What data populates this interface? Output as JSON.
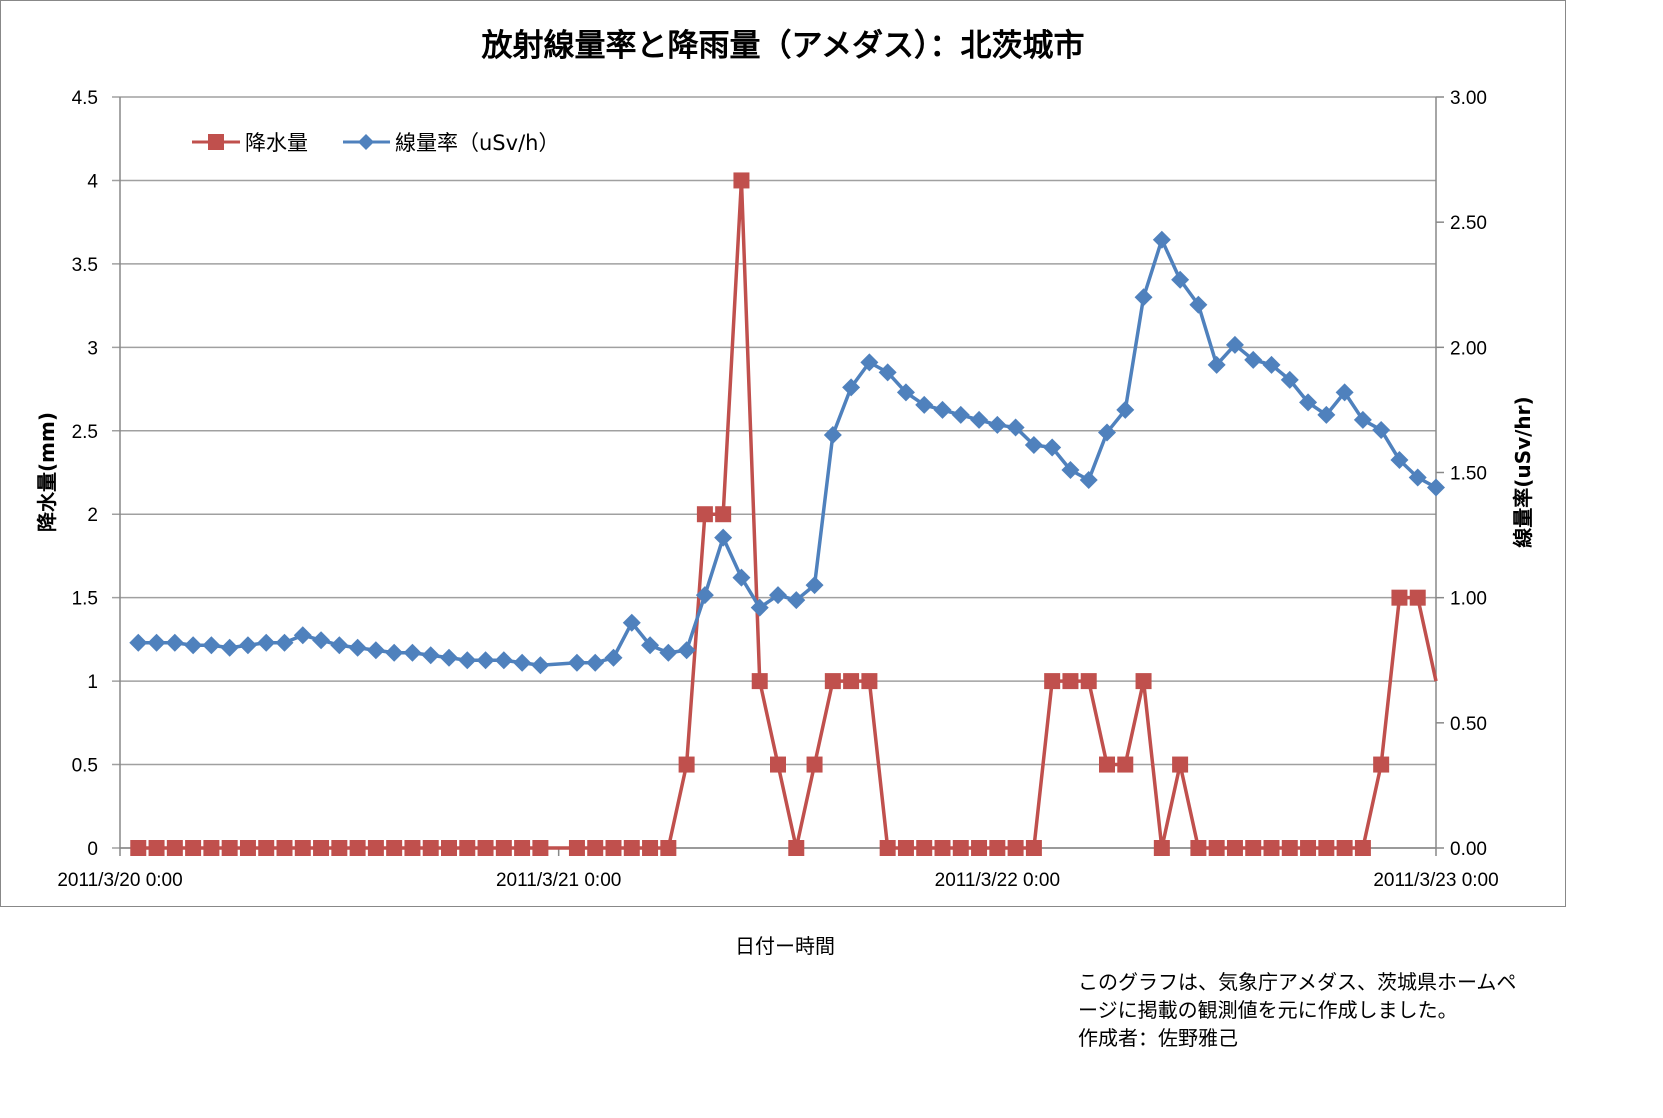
{
  "chart_data": {
    "type": "line",
    "title": "放射線量率と降雨量（アメダス）：北茨城市",
    "xlabel": "日付ー時間",
    "ylabel_left": "降水量(mm)",
    "ylabel_right": "線量率(uSv/hr)",
    "x_ticks": [
      "2011/3/20 0:00",
      "2011/3/21 0:00",
      "2011/3/22 0:00",
      "2011/3/23 0:00"
    ],
    "x_range": [
      "2011/3/20 0:00",
      "2011/3/23 0:00"
    ],
    "y_left": {
      "range": [
        0,
        4.5
      ],
      "ticks": [
        "0",
        "0.5",
        "1",
        "1.5",
        "2",
        "2.5",
        "3",
        "3.5",
        "4",
        "4.5"
      ]
    },
    "y_right": {
      "range": [
        0,
        3.0
      ],
      "ticks": [
        "0.00",
        "0.50",
        "1.00",
        "1.50",
        "2.00",
        "2.50",
        "3.00"
      ]
    },
    "grid": true,
    "legend_position": "top-left",
    "x_hours_since_3_20_0000": null,
    "series": [
      {
        "name": "降水量",
        "axis": "left",
        "color": "#C0504D",
        "marker": "square",
        "x": [
          "3/20 1:00",
          "3/20 2:00",
          "3/20 3:00",
          "3/20 4:00",
          "3/20 5:00",
          "3/20 6:00",
          "3/20 7:00",
          "3/20 8:00",
          "3/20 9:00",
          "3/20 10:00",
          "3/20 11:00",
          "3/20 12:00",
          "3/20 13:00",
          "3/20 14:00",
          "3/20 15:00",
          "3/20 16:00",
          "3/20 17:00",
          "3/20 18:00",
          "3/20 19:00",
          "3/20 20:00",
          "3/20 21:00",
          "3/20 22:00",
          "3/20 23:00",
          "3/21 0:00",
          "3/21 1:00",
          "3/21 2:00",
          "3/21 3:00",
          "3/21 4:00",
          "3/21 5:00",
          "3/21 6:00",
          "3/21 7:00",
          "3/21 8:00",
          "3/21 9:00",
          "3/21 10:00",
          "3/21 11:00",
          "3/21 12:00",
          "3/21 13:00",
          "3/21 14:00",
          "3/21 15:00",
          "3/21 16:00",
          "3/21 17:00",
          "3/21 18:00",
          "3/21 19:00",
          "3/21 20:00",
          "3/21 21:00",
          "3/21 22:00",
          "3/21 23:00",
          "3/22 0:00",
          "3/22 1:00",
          "3/22 2:00",
          "3/22 3:00",
          "3/22 4:00",
          "3/22 5:00",
          "3/22 6:00",
          "3/22 7:00",
          "3/22 8:00",
          "3/22 9:00",
          "3/22 10:00",
          "3/22 11:00",
          "3/22 12:00",
          "3/22 13:00",
          "3/22 14:00",
          "3/22 15:00",
          "3/22 16:00",
          "3/22 17:00",
          "3/22 18:00",
          "3/22 19:00",
          "3/22 20:00",
          "3/22 21:00",
          "3/22 22:00",
          "3/22 23:00",
          "3/23 0:00"
        ],
        "values": [
          0,
          0,
          0,
          0,
          0,
          0,
          0,
          0,
          0,
          0,
          0,
          0,
          0,
          0,
          0,
          0,
          0,
          0,
          0,
          0,
          0,
          0,
          0,
          null,
          0,
          0,
          0,
          0,
          0,
          0,
          0.5,
          2,
          2,
          4,
          1,
          0.5,
          0,
          0.5,
          1,
          1,
          1,
          0,
          0,
          0,
          0,
          0,
          0,
          0,
          0,
          0,
          1,
          1,
          1,
          0.5,
          0.5,
          1,
          0,
          0.5,
          0,
          0,
          0,
          0,
          0,
          0,
          0,
          0,
          0,
          0,
          0.5,
          1.5,
          1.5,
          1
        ]
      },
      {
        "name": "線量率（uSv/h）",
        "axis": "right",
        "color": "#4F81BD",
        "marker": "diamond",
        "values": [
          0.82,
          0.82,
          0.82,
          0.81,
          0.81,
          0.8,
          0.81,
          0.82,
          0.82,
          0.85,
          0.83,
          0.81,
          0.8,
          0.79,
          0.78,
          0.78,
          0.77,
          0.76,
          0.75,
          0.75,
          0.75,
          0.74,
          0.73,
          null,
          0.74,
          0.74,
          0.76,
          0.9,
          0.81,
          0.78,
          0.79,
          1.01,
          1.24,
          1.08,
          0.96,
          1.01,
          0.99,
          1.05,
          1.65,
          1.84,
          1.94,
          1.9,
          1.82,
          1.77,
          1.75,
          1.73,
          1.71,
          1.69,
          1.68,
          1.61,
          1.6,
          1.51,
          1.47,
          1.66,
          1.75,
          2.2,
          2.43,
          2.27,
          2.17,
          1.93,
          2.01,
          1.95,
          1.93,
          1.87,
          1.78,
          1.73,
          1.82,
          1.71,
          1.67,
          1.55,
          1.48,
          1.44
        ]
      }
    ]
  },
  "footnote": {
    "lines": [
      "このグラフは、気象庁アメダス、茨城県ホームペ",
      "ージに掲載の観測値を元に作成しました。",
      "作成者：佐野雅己"
    ]
  }
}
